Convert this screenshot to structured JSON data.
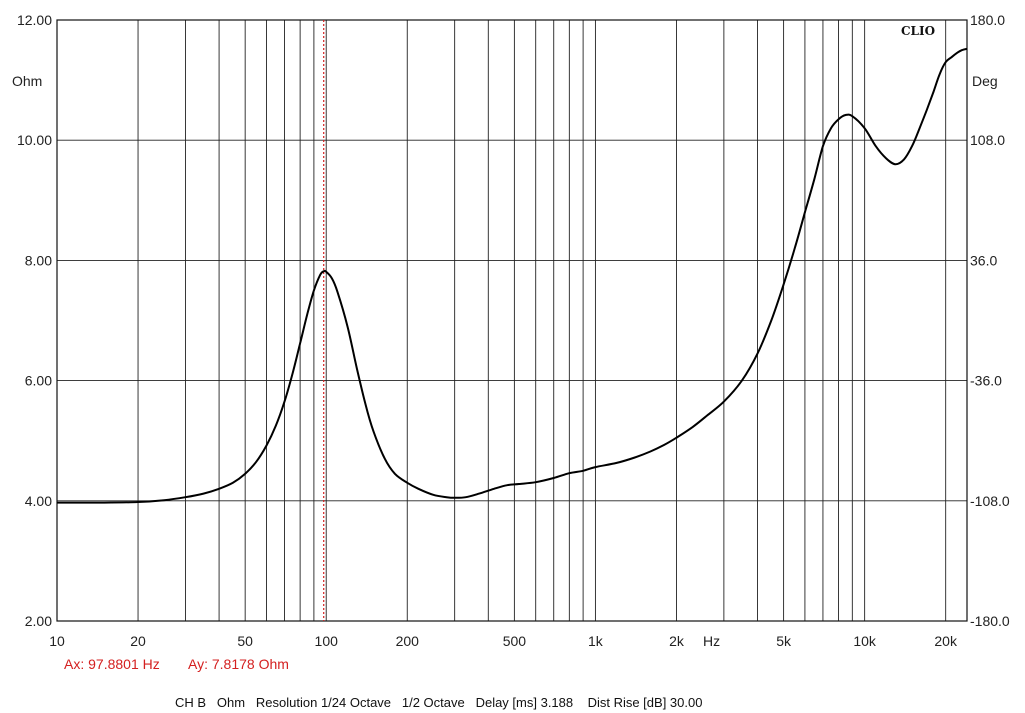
{
  "chart_data": {
    "type": "line",
    "brand": "CLIO",
    "x_axis": {
      "scale": "log",
      "range": [
        10,
        24000
      ],
      "ticks": [
        {
          "value": 10,
          "label": "10"
        },
        {
          "value": 20,
          "label": "20"
        },
        {
          "value": 50,
          "label": "50"
        },
        {
          "value": 100,
          "label": "100"
        },
        {
          "value": 200,
          "label": "200"
        },
        {
          "value": 500,
          "label": "500"
        },
        {
          "value": 1000,
          "label": "1k"
        },
        {
          "value": 2000,
          "label": "2k"
        },
        {
          "value": 5000,
          "label": "5k"
        },
        {
          "value": 10000,
          "label": "10k"
        },
        {
          "value": 20000,
          "label": "20k"
        }
      ],
      "unit_label": "Hz"
    },
    "y_left": {
      "unit": "Ohm",
      "range": [
        2,
        12
      ],
      "ticks": [
        "2.00",
        "4.00",
        "6.00",
        "8.00",
        "10.00",
        "12.00"
      ]
    },
    "y_right": {
      "unit": "Deg",
      "range": [
        -180,
        180
      ],
      "ticks": [
        "-180.0",
        "-108.0",
        "-36.0",
        "36.0",
        "108.0",
        "180.0"
      ]
    },
    "grid": true,
    "series": [
      {
        "color": "#000000",
        "points": [
          [
            10,
            3.97
          ],
          [
            15,
            3.97
          ],
          [
            20,
            3.98
          ],
          [
            25,
            4.01
          ],
          [
            30,
            4.06
          ],
          [
            35,
            4.12
          ],
          [
            40,
            4.2
          ],
          [
            45,
            4.3
          ],
          [
            50,
            4.45
          ],
          [
            55,
            4.65
          ],
          [
            60,
            4.92
          ],
          [
            65,
            5.25
          ],
          [
            70,
            5.65
          ],
          [
            75,
            6.12
          ],
          [
            80,
            6.62
          ],
          [
            85,
            7.1
          ],
          [
            90,
            7.5
          ],
          [
            95,
            7.76
          ],
          [
            98,
            7.82
          ],
          [
            100,
            7.81
          ],
          [
            105,
            7.7
          ],
          [
            110,
            7.48
          ],
          [
            120,
            6.9
          ],
          [
            130,
            6.2
          ],
          [
            140,
            5.6
          ],
          [
            150,
            5.15
          ],
          [
            165,
            4.7
          ],
          [
            180,
            4.45
          ],
          [
            200,
            4.3
          ],
          [
            220,
            4.2
          ],
          [
            250,
            4.1
          ],
          [
            280,
            4.06
          ],
          [
            300,
            4.05
          ],
          [
            330,
            4.06
          ],
          [
            370,
            4.12
          ],
          [
            420,
            4.2
          ],
          [
            470,
            4.26
          ],
          [
            520,
            4.28
          ],
          [
            600,
            4.31
          ],
          [
            700,
            4.38
          ],
          [
            800,
            4.46
          ],
          [
            900,
            4.5
          ],
          [
            1000,
            4.56
          ],
          [
            1200,
            4.63
          ],
          [
            1400,
            4.72
          ],
          [
            1600,
            4.82
          ],
          [
            1800,
            4.93
          ],
          [
            2000,
            5.05
          ],
          [
            2300,
            5.23
          ],
          [
            2600,
            5.42
          ],
          [
            3000,
            5.65
          ],
          [
            3500,
            6.0
          ],
          [
            4000,
            6.45
          ],
          [
            4500,
            7.0
          ],
          [
            5000,
            7.6
          ],
          [
            5500,
            8.2
          ],
          [
            6000,
            8.8
          ],
          [
            6500,
            9.35
          ],
          [
            7000,
            9.9
          ],
          [
            7500,
            10.2
          ],
          [
            8000,
            10.35
          ],
          [
            8500,
            10.42
          ],
          [
            9000,
            10.4
          ],
          [
            10000,
            10.2
          ],
          [
            11000,
            9.9
          ],
          [
            12000,
            9.7
          ],
          [
            13000,
            9.6
          ],
          [
            14000,
            9.68
          ],
          [
            15000,
            9.9
          ],
          [
            16000,
            10.2
          ],
          [
            17000,
            10.5
          ],
          [
            18000,
            10.8
          ],
          [
            19000,
            11.1
          ],
          [
            20000,
            11.3
          ],
          [
            21000,
            11.38
          ],
          [
            22000,
            11.45
          ],
          [
            23000,
            11.5
          ],
          [
            24000,
            11.52
          ]
        ]
      }
    ],
    "cursor": {
      "x": 97.8801,
      "y": 7.8178,
      "color": "#d42020",
      "label_x": "Ax: 97.8801 Hz",
      "label_y": "Ay: 7.8178 Ohm"
    }
  },
  "footer": "CH B   Ohm   Resolution 1/24 Octave   1/2 Octave   Delay [ms] 3.188    Dist Rise [dB] 30.00"
}
